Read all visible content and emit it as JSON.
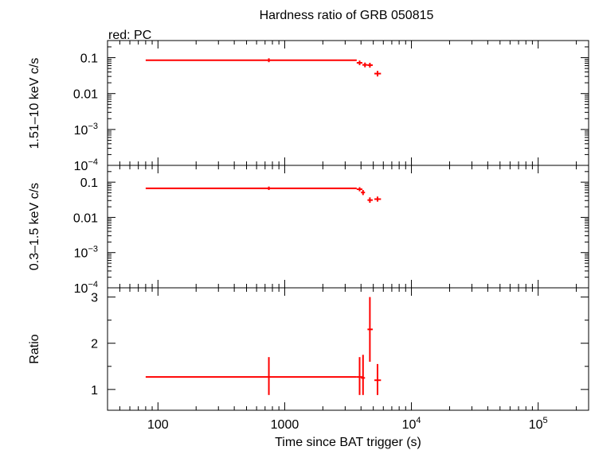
{
  "chart_data": {
    "type": "scatter",
    "title": "Hardness ratio of GRB 050815",
    "legend": "red: PC",
    "xlabel": "Time since BAT trigger (s)",
    "x_scale": "log",
    "xlim": [
      40,
      250000
    ],
    "x_tick_labels": [
      {
        "value": 100,
        "base": "100",
        "exp": ""
      },
      {
        "value": 1000,
        "base": "1000",
        "exp": ""
      },
      {
        "value": 10000,
        "base": "10",
        "exp": "4"
      },
      {
        "value": 100000,
        "base": "10",
        "exp": "5"
      }
    ],
    "color": "#ff0000",
    "panels": [
      {
        "id": "hard",
        "ylabel": "1.51–10 keV c/s",
        "y_scale": "log",
        "ylim": [
          0.0001,
          0.3
        ],
        "y_tick_labels": [
          {
            "value": 0.1,
            "base": "0.1",
            "exp": ""
          },
          {
            "value": 0.01,
            "base": "0.01",
            "exp": ""
          },
          {
            "value": 0.001,
            "base": "10",
            "exp": "−3"
          },
          {
            "value": 0.0001,
            "base": "10",
            "exp": "−4"
          }
        ],
        "points": [
          {
            "x": 750,
            "xlo": 80,
            "xhi": 3700,
            "y": 0.085,
            "ylo": 0.075,
            "yhi": 0.096
          },
          {
            "x": 3900,
            "xlo": 3700,
            "xhi": 4100,
            "y": 0.072,
            "ylo": 0.062,
            "yhi": 0.083
          },
          {
            "x": 4300,
            "xlo": 4100,
            "xhi": 4500,
            "y": 0.063,
            "ylo": 0.054,
            "yhi": 0.073
          },
          {
            "x": 4700,
            "xlo": 4500,
            "xhi": 4950,
            "y": 0.062,
            "ylo": 0.053,
            "yhi": 0.072
          },
          {
            "x": 5400,
            "xlo": 5100,
            "xhi": 5750,
            "y": 0.036,
            "ylo": 0.03,
            "yhi": 0.043
          }
        ]
      },
      {
        "id": "soft",
        "ylabel": "0.3–1.5 keV c/s",
        "y_scale": "log",
        "ylim": [
          0.0001,
          0.3
        ],
        "y_tick_labels": [
          {
            "value": 0.1,
            "base": "0.1",
            "exp": ""
          },
          {
            "value": 0.01,
            "base": "0.01",
            "exp": ""
          },
          {
            "value": 0.001,
            "base": "10",
            "exp": "−3"
          },
          {
            "value": 0.0001,
            "base": "10",
            "exp": "−4"
          }
        ],
        "points": [
          {
            "x": 750,
            "xlo": 80,
            "xhi": 3700,
            "y": 0.067,
            "ylo": 0.06,
            "yhi": 0.075
          },
          {
            "x": 3900,
            "xlo": 3700,
            "xhi": 4100,
            "y": 0.063,
            "ylo": 0.055,
            "yhi": 0.072
          },
          {
            "x": 4150,
            "xlo": 4000,
            "xhi": 4300,
            "y": 0.051,
            "ylo": 0.043,
            "yhi": 0.06
          },
          {
            "x": 4700,
            "xlo": 4500,
            "xhi": 4950,
            "y": 0.031,
            "ylo": 0.026,
            "yhi": 0.037
          },
          {
            "x": 5400,
            "xlo": 5100,
            "xhi": 5750,
            "y": 0.033,
            "ylo": 0.028,
            "yhi": 0.039
          }
        ]
      },
      {
        "id": "ratio",
        "ylabel": "Ratio",
        "y_scale": "linear",
        "ylim": [
          0.55,
          3.2
        ],
        "y_tick_labels": [
          {
            "value": 3,
            "base": "3",
            "exp": ""
          },
          {
            "value": 2,
            "base": "2",
            "exp": ""
          },
          {
            "value": 1,
            "base": "1",
            "exp": ""
          }
        ],
        "points": [
          {
            "x": 750,
            "xlo": 80,
            "xhi": 3700,
            "y": 1.27,
            "ylo": 0.88,
            "yhi": 1.7
          },
          {
            "x": 3900,
            "xlo": 3700,
            "xhi": 4100,
            "y": 1.27,
            "ylo": 0.88,
            "yhi": 1.7
          },
          {
            "x": 4150,
            "xlo": 4000,
            "xhi": 4300,
            "y": 1.25,
            "ylo": 0.88,
            "yhi": 1.75
          },
          {
            "x": 4700,
            "xlo": 4500,
            "xhi": 4950,
            "y": 2.3,
            "ylo": 1.6,
            "yhi": 3.0
          },
          {
            "x": 5400,
            "xlo": 5100,
            "xhi": 5750,
            "y": 1.2,
            "ylo": 0.88,
            "yhi": 1.55
          }
        ]
      }
    ]
  }
}
